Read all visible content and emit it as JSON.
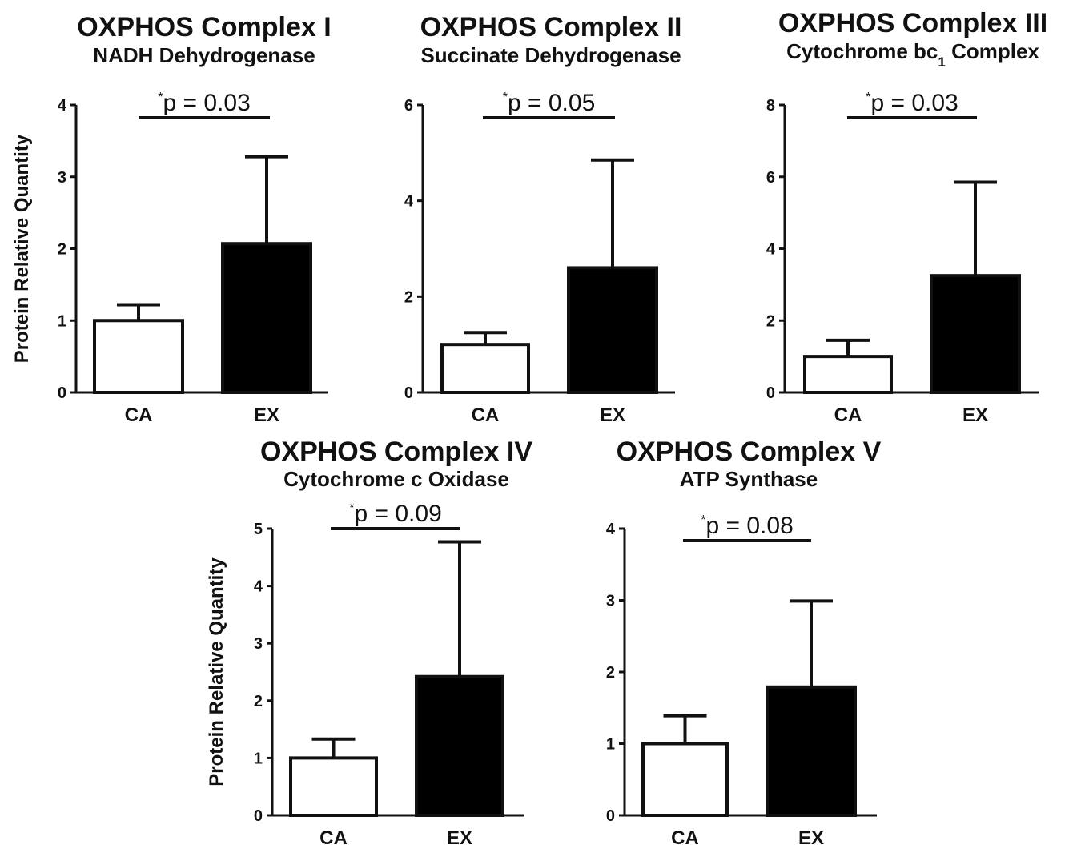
{
  "chart_data": [
    {
      "type": "bar",
      "title": "OXPHOS Complex I",
      "subtitle": "NADH Dehydrogenase",
      "ylabel": "Protein Relative Quantity",
      "categories": [
        "CA",
        "EX"
      ],
      "values": [
        1.0,
        2.07
      ],
      "error_upper": [
        1.22,
        3.28
      ],
      "ylim": [
        0,
        4
      ],
      "yticks": [
        "0",
        "1",
        "2",
        "3",
        "4"
      ],
      "significance": {
        "star": "*",
        "text": "p = 0.03"
      },
      "bar_colors": [
        "#ffffff",
        "#000000"
      ]
    },
    {
      "type": "bar",
      "title": "OXPHOS Complex II",
      "subtitle": "Succinate  Dehydrogenase",
      "ylabel": "",
      "categories": [
        "CA",
        "EX"
      ],
      "values": [
        1.0,
        2.6
      ],
      "error_upper": [
        1.25,
        4.85
      ],
      "ylim": [
        0,
        6
      ],
      "yticks": [
        "0",
        "2",
        "4",
        "6"
      ],
      "significance": {
        "star": "*",
        "text": "p = 0.05"
      },
      "bar_colors": [
        "#ffffff",
        "#000000"
      ]
    },
    {
      "type": "bar",
      "title": "OXPHOS Complex III",
      "subtitle": "Cytochrome bc",
      "subtitle_sub": "1",
      "subtitle_tail": " Complex",
      "ylabel": "",
      "categories": [
        "CA",
        "EX"
      ],
      "values": [
        1.0,
        3.25
      ],
      "error_upper": [
        1.45,
        5.85
      ],
      "ylim": [
        0,
        8
      ],
      "yticks": [
        "0",
        "2",
        "4",
        "6",
        "8"
      ],
      "significance": {
        "star": "*",
        "text": "p = 0.03"
      },
      "bar_colors": [
        "#ffffff",
        "#000000"
      ]
    },
    {
      "type": "bar",
      "title": "OXPHOS Complex IV",
      "subtitle": "Cytochrome c Oxidase",
      "ylabel": "Protein Relative Quantity",
      "categories": [
        "CA",
        "EX"
      ],
      "values": [
        1.0,
        2.42
      ],
      "error_upper": [
        1.33,
        4.77
      ],
      "ylim": [
        0,
        5
      ],
      "yticks": [
        "0",
        "1",
        "2",
        "3",
        "4",
        "5"
      ],
      "significance": {
        "star": "*",
        "text": "p = 0.09"
      },
      "bar_colors": [
        "#ffffff",
        "#000000"
      ]
    },
    {
      "type": "bar",
      "title": "OXPHOS Complex V",
      "subtitle": "ATP Synthase",
      "ylabel": "",
      "categories": [
        "CA",
        "EX"
      ],
      "values": [
        1.0,
        1.79
      ],
      "error_upper": [
        1.39,
        2.99
      ],
      "ylim": [
        0,
        4
      ],
      "yticks": [
        "0",
        "1",
        "2",
        "3",
        "4"
      ],
      "significance": {
        "star": "*",
        "text": "p = 0.08"
      },
      "bar_colors": [
        "#ffffff",
        "#000000"
      ]
    }
  ]
}
